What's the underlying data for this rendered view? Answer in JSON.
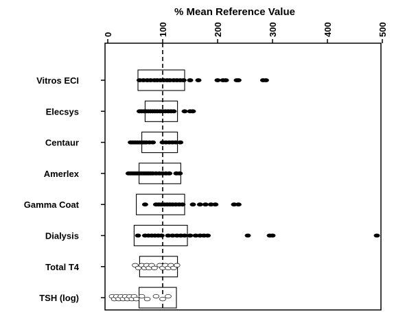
{
  "chart_data": {
    "type": "scatter",
    "title": "% Mean Reference Value",
    "x_axis_position": "top",
    "xlim": [
      0,
      500
    ],
    "xticks": [
      0,
      100,
      200,
      300,
      400,
      500
    ],
    "reference_line": 100,
    "categories": [
      "Vitros ECI",
      "Elecsys",
      "Centaur",
      "Amerlex",
      "Gamma Coat",
      "Dialysis",
      "Total T4",
      "TSH (log)"
    ],
    "series": [
      {
        "category": "Vitros ECI",
        "style": "filled",
        "box": [
          55,
          140
        ],
        "points": [
          58,
          65,
          72,
          78,
          85,
          90,
          96,
          102,
          108,
          113,
          120,
          126,
          132,
          138,
          150,
          165,
          200,
          210,
          215,
          235,
          238,
          283,
          288
        ]
      },
      {
        "category": "Elecsys",
        "style": "filled",
        "box": [
          68,
          127
        ],
        "points": [
          58,
          62,
          66,
          70,
          74,
          78,
          82,
          86,
          90,
          95,
          100,
          105,
          110,
          115,
          120,
          140,
          150,
          155
        ]
      },
      {
        "category": "Centaur",
        "style": "filled",
        "box": [
          62,
          127
        ],
        "points": [
          42,
          46,
          50,
          54,
          58,
          62,
          66,
          70,
          76,
          82,
          100,
          106,
          112,
          118,
          124,
          132
        ]
      },
      {
        "category": "Amerlex",
        "style": "filled",
        "box": [
          57,
          133
        ],
        "points": [
          38,
          42,
          46,
          50,
          54,
          58,
          62,
          66,
          70,
          74,
          78,
          82,
          88,
          94,
          100,
          106,
          112,
          125,
          131
        ]
      },
      {
        "category": "Gamma Coat",
        "style": "filled",
        "box": [
          52,
          140
        ],
        "points": [
          68,
          88,
          93,
          98,
          103,
          108,
          113,
          118,
          124,
          130,
          136,
          155,
          168,
          178,
          188,
          196,
          230,
          238
        ]
      },
      {
        "category": "Dialysis",
        "style": "filled",
        "box": [
          48,
          145
        ],
        "points": [
          55,
          68,
          74,
          80,
          86,
          92,
          98,
          110,
          118,
          126,
          133,
          140,
          150,
          160,
          168,
          175,
          182,
          255,
          295,
          300,
          490
        ]
      },
      {
        "category": "Total T4",
        "style": "open",
        "box": [
          58,
          127
        ],
        "points": [
          50,
          56,
          62,
          67,
          71,
          75,
          80,
          85,
          95,
          100,
          105,
          110,
          115,
          120,
          126
        ]
      },
      {
        "category": "TSH (log)",
        "style": "open",
        "box": [
          57,
          125
        ],
        "points": [
          8,
          12,
          16,
          20,
          24,
          28,
          32,
          36,
          40,
          44,
          48,
          52,
          62,
          72,
          88,
          100,
          110
        ]
      }
    ]
  }
}
